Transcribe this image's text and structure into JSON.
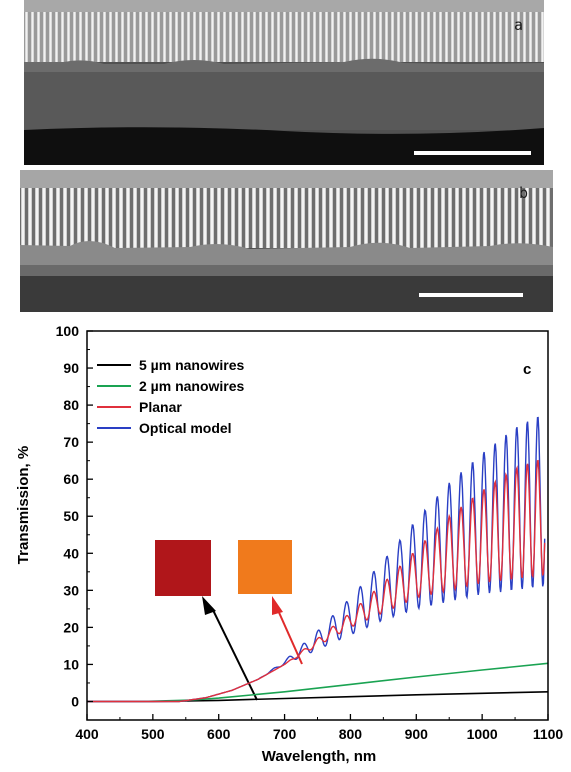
{
  "panels": {
    "a": {
      "label": "a"
    },
    "b": {
      "label": "b"
    }
  },
  "chart_data": {
    "type": "line",
    "panel_label": "c",
    "title": "",
    "xlabel": "Wavelength, nm",
    "ylabel": "Transmission, %",
    "xlim": [
      400,
      1100
    ],
    "ylim": [
      -5,
      100
    ],
    "xticks": [
      400,
      500,
      600,
      700,
      800,
      900,
      1000,
      1100
    ],
    "yticks": [
      0,
      10,
      20,
      30,
      40,
      50,
      60,
      70,
      80,
      90,
      100
    ],
    "grid": false,
    "legend_position": "top-left",
    "series": [
      {
        "name": "5 µm nanowires",
        "color": "#000000",
        "x": [
          400,
          500,
          600,
          700,
          800,
          900,
          1000,
          1100
        ],
        "y": [
          0,
          0,
          0.3,
          0.8,
          1.3,
          1.8,
          2.2,
          2.6
        ]
      },
      {
        "name": "2 µm nanowires",
        "color": "#1aa352",
        "x": [
          480,
          560,
          600,
          700,
          800,
          900,
          1000,
          1100
        ],
        "y": [
          0,
          0.4,
          0.9,
          2.6,
          4.6,
          6.6,
          8.5,
          10.3
        ]
      },
      {
        "name": "Planar",
        "color": "#e0303c",
        "x": [
          400,
          540,
          580,
          620,
          660,
          700,
          750,
          800,
          850,
          900,
          950,
          1000,
          1050,
          1095
        ],
        "y_low": [
          0,
          0,
          1,
          3,
          6,
          10,
          15,
          20,
          24,
          28,
          30,
          32,
          33,
          34
        ],
        "y_high": [
          0,
          0,
          1,
          3,
          6,
          10,
          17,
          24,
          32,
          41,
          50,
          57,
          63,
          66
        ]
      },
      {
        "name": "Optical model",
        "color": "#2a3fc4",
        "x": [
          400,
          540,
          580,
          620,
          660,
          700,
          750,
          800,
          850,
          900,
          950,
          1000,
          1050,
          1095
        ],
        "y_low": [
          0,
          0,
          1,
          3,
          6,
          10,
          14,
          18,
          22,
          25,
          27,
          29,
          30,
          31
        ],
        "y_high": [
          0,
          0,
          1,
          3,
          6,
          11,
          19,
          28,
          38,
          49,
          59,
          67,
          74,
          78
        ]
      }
    ],
    "insets": [
      {
        "name": "5 µm nanowires sample",
        "color": "#b0161a",
        "arrow_color": "#000000"
      },
      {
        "name": "planar sample",
        "color": "#f07a1c",
        "arrow_color": "#e02a2a"
      }
    ]
  }
}
